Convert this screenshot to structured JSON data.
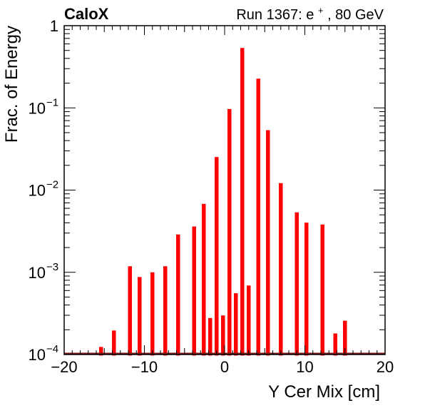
{
  "chart_data": {
    "type": "bar",
    "title_left": "CaloX",
    "title_right": {
      "prefix": "Run 1367: e",
      "sup": "+",
      "suffix": ", 80 GeV"
    },
    "xlabel": "Y Cer Mix [cm]",
    "ylabel": "Frac. of Energy",
    "xlim": [
      -20,
      20
    ],
    "ylim": [
      0.0001,
      1
    ],
    "yscale": "log",
    "x_ticks": [
      {
        "value": -20,
        "label": "−20"
      },
      {
        "value": -10,
        "label": "−10"
      },
      {
        "value": 0,
        "label": "0"
      },
      {
        "value": 10,
        "label": "10"
      },
      {
        "value": 20,
        "label": "20"
      }
    ],
    "y_ticks": [
      {
        "value": 0.0001,
        "base": "10",
        "exp": "−4"
      },
      {
        "value": 0.001,
        "base": "10",
        "exp": "−3"
      },
      {
        "value": 0.01,
        "base": "10",
        "exp": "−2"
      },
      {
        "value": 0.1,
        "base": "10",
        "exp": "−1"
      },
      {
        "value": 1,
        "base": "1",
        "exp": ""
      }
    ],
    "bin_width": 0.4,
    "bars": [
      {
        "x": -15.4,
        "y": 0.00012
      },
      {
        "x": -13.8,
        "y": 0.00019
      },
      {
        "x": -11.8,
        "y": 0.00115
      },
      {
        "x": -10.6,
        "y": 0.00085
      },
      {
        "x": -9.0,
        "y": 0.00097
      },
      {
        "x": -7.4,
        "y": 0.00115
      },
      {
        "x": -5.8,
        "y": 0.0028
      },
      {
        "x": -3.8,
        "y": 0.0035
      },
      {
        "x": -2.6,
        "y": 0.0066
      },
      {
        "x": -1.8,
        "y": 0.00027
      },
      {
        "x": -1.0,
        "y": 0.0245
      },
      {
        "x": -0.2,
        "y": 0.00029
      },
      {
        "x": 0.6,
        "y": 0.094
      },
      {
        "x": 1.4,
        "y": 0.00054
      },
      {
        "x": 2.2,
        "y": 0.52
      },
      {
        "x": 3.0,
        "y": 0.00067
      },
      {
        "x": 4.2,
        "y": 0.22
      },
      {
        "x": 5.4,
        "y": 0.052
      },
      {
        "x": 7.0,
        "y": 0.0118
      },
      {
        "x": 9.0,
        "y": 0.0052
      },
      {
        "x": 10.2,
        "y": 0.0039
      },
      {
        "x": 12.2,
        "y": 0.0037
      },
      {
        "x": 13.8,
        "y": 0.000175
      },
      {
        "x": 15.0,
        "y": 0.00025
      }
    ],
    "grid": false,
    "legend": "none",
    "colors": {
      "bars": "#ff0000",
      "baseline": "#7a1a1a",
      "axes": "#000000"
    }
  }
}
